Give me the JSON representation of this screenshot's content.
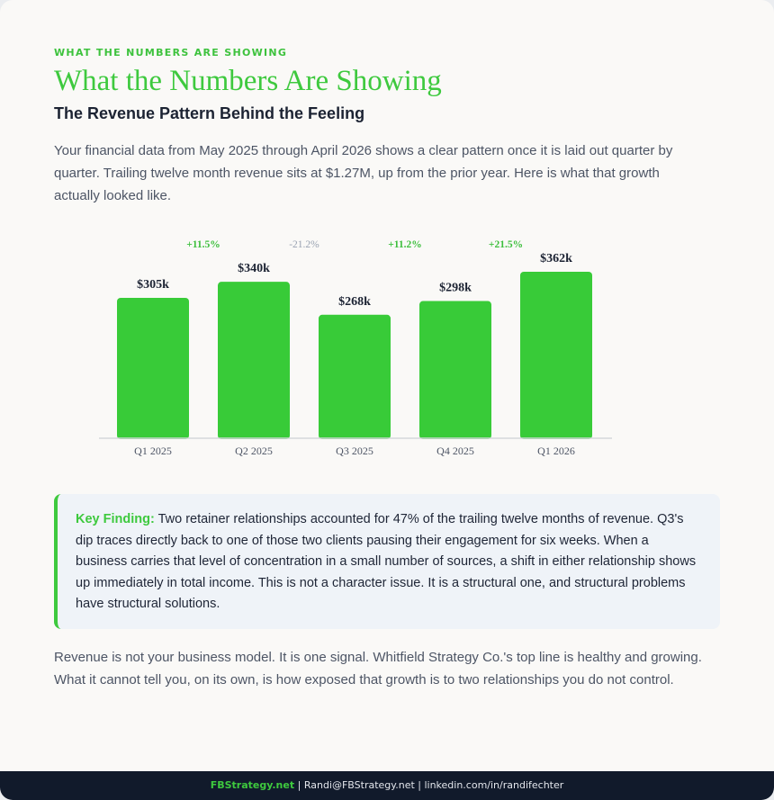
{
  "header": {
    "eyebrow": "WHAT THE NUMBERS ARE SHOWING",
    "title": "What the Numbers Are Showing",
    "subtitle": "The Revenue Pattern Behind the Feeling"
  },
  "intro": "Your financial data from May 2025 through April 2026 shows a clear pattern once it is laid out quarter by quarter. Trailing twelve month revenue sits at $1.27M, up from the prior year. Here is what that growth actually looked like.",
  "chart_data": {
    "type": "bar",
    "title": "",
    "xlabel": "",
    "ylabel": "",
    "categories": [
      "Q1 2025",
      "Q2 2025",
      "Q3 2025",
      "Q4 2025",
      "Q1 2026"
    ],
    "values": [
      305,
      340,
      268,
      298,
      362
    ],
    "value_labels": [
      "$305k",
      "$340k",
      "$268k",
      "$298k",
      "$362k"
    ],
    "changes": [
      "+11.5%",
      "-21.2%",
      "+11.2%",
      "+21.5%"
    ],
    "change_directions": [
      "up",
      "down",
      "up",
      "up"
    ],
    "ylim": [
      0,
      362
    ],
    "grid": false,
    "colors": {
      "bar": "#38cb38",
      "change_up": "#3dbf3d",
      "change_down": "#9aa3b2",
      "value_label": "#1c2333",
      "axis": "#d4d7dc",
      "tick_label": "#4d5565"
    }
  },
  "finding": {
    "label": "Key Finding:",
    "text": " Two retainer relationships accounted for 47% of the trailing twelve months of revenue. Q3's dip traces directly back to one of those two clients pausing their engagement for six weeks. When a business carries that level of concentration in a small number of sources, a shift in either relationship shows up immediately in total income. This is not a character issue. It is a structural one, and structural problems have structural solutions."
  },
  "outro": "Revenue is not your business model. It is one signal. Whitfield Strategy Co.'s top line is healthy and growing. What it cannot tell you, on its own, is how exposed that growth is to two relationships you do not control.",
  "footer": {
    "site": "FBStrategy.net",
    "rest": " | Randi@FBStrategy.net | linkedin.com/in/randifechter"
  }
}
